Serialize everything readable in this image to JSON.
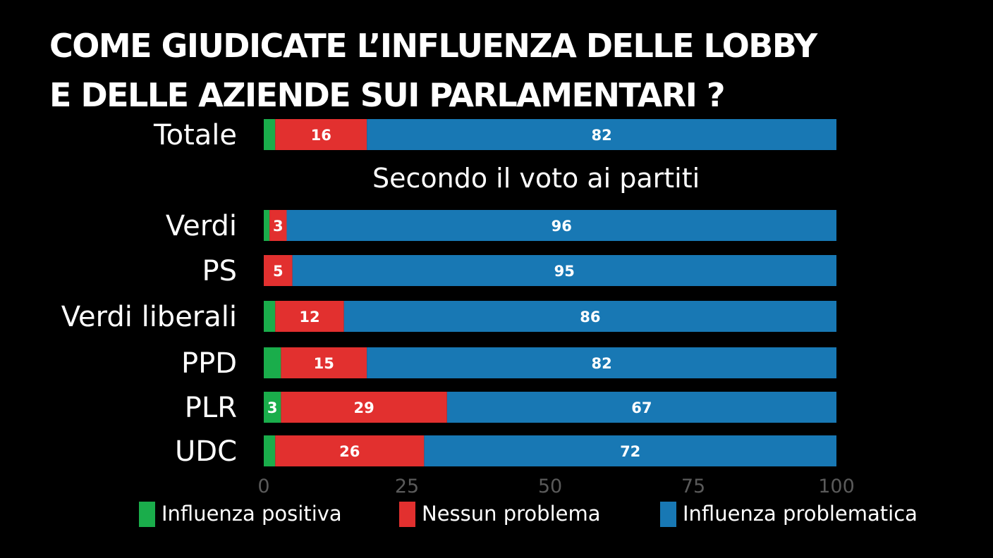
{
  "chart_data": {
    "type": "bar",
    "orientation": "horizontal",
    "stacked": true,
    "title": "COME GIUDICATE L’INFLUENZA DELLE LOBBY E DELLE AZIENDE SUI PARLAMENTARI ?",
    "title_lines": [
      "COME GIUDICATE L’INFLUENZA DELLE LOBBY",
      "E DELLE AZIENDE SUI PARLAMENTARI ?"
    ],
    "subtitle": "Secondo il voto ai partiti",
    "categories": [
      "Totale",
      "Verdi",
      "PS",
      "Verdi liberali",
      "PPD",
      "PLR",
      "UDC"
    ],
    "series": [
      {
        "name": "Influenza positiva",
        "color": "#1aad4b",
        "values": [
          2,
          1,
          0,
          2,
          3,
          3,
          2
        ],
        "labels": [
          "",
          "",
          "",
          "",
          "",
          "3",
          ""
        ]
      },
      {
        "name": "Nessun problema",
        "color": "#e2302f",
        "values": [
          16,
          3,
          5,
          12,
          15,
          29,
          26
        ],
        "labels": [
          "16",
          "3",
          "5",
          "12",
          "15",
          "29",
          "26"
        ]
      },
      {
        "name": "Influenza problematica",
        "color": "#1878b4",
        "values": [
          82,
          96,
          95,
          86,
          82,
          67,
          72
        ],
        "labels": [
          "82",
          "96",
          "95",
          "86",
          "82",
          "67",
          "72"
        ]
      }
    ],
    "x_ticks": [
      "0",
      "25",
      "50",
      "75",
      "100"
    ],
    "xlim": [
      0,
      100
    ],
    "xlabel": "",
    "ylabel": "",
    "grid": false,
    "legend_position": "bottom"
  }
}
